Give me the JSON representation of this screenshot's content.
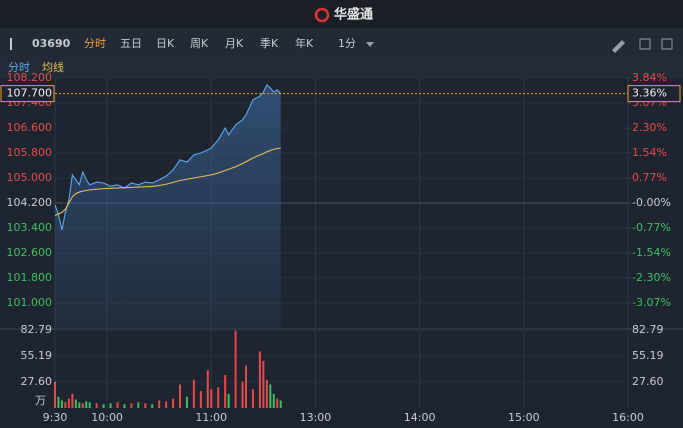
{
  "header": {
    "title": "华盛通"
  },
  "toolbar": {
    "symbol": "03690",
    "tabs": [
      "分时",
      "五日",
      "日K",
      "周K",
      "月K",
      "季K",
      "年K"
    ],
    "interval": "1分"
  },
  "chart_data": {
    "type": "line",
    "x": [
      0,
      2,
      4,
      6,
      8,
      10,
      12,
      14,
      16,
      18,
      20,
      24,
      28,
      32,
      36,
      40,
      44,
      48,
      52,
      56,
      60,
      64,
      68,
      72,
      76,
      80,
      84,
      88,
      90,
      94,
      98,
      100,
      104,
      108,
      110,
      114,
      118,
      120,
      122,
      124,
      126,
      128,
      130
    ],
    "xlim": [
      0,
      330
    ],
    "xticks": [
      {
        "value": 0,
        "label": "9:30"
      },
      {
        "value": 30,
        "label": "10:00"
      },
      {
        "value": 90,
        "label": "11:00"
      },
      {
        "value": 150,
        "label": "13:00"
      },
      {
        "value": 210,
        "label": "14:00"
      },
      {
        "value": 270,
        "label": "15:00"
      },
      {
        "value": 330,
        "label": "16:00"
      }
    ],
    "series": [
      {
        "name": "分时",
        "color": "#5aa9f0",
        "values": [
          104.14,
          103.82,
          103.34,
          103.91,
          104.3,
          105.1,
          104.94,
          104.78,
          105.19,
          104.94,
          104.78,
          104.87,
          104.84,
          104.74,
          104.78,
          104.68,
          104.84,
          104.78,
          104.87,
          104.84,
          104.94,
          105.06,
          105.26,
          105.58,
          105.51,
          105.74,
          105.8,
          105.9,
          105.96,
          106.22,
          106.6,
          106.38,
          106.7,
          106.86,
          107.02,
          107.5,
          107.62,
          107.75,
          107.98,
          107.88,
          107.75,
          107.82,
          107.7
        ]
      },
      {
        "name": "均线",
        "color": "#e8c04f",
        "values": [
          103.8,
          103.85,
          103.9,
          104.0,
          104.2,
          104.4,
          104.5,
          104.55,
          104.58,
          104.6,
          104.62,
          104.64,
          104.66,
          104.67,
          104.68,
          104.69,
          104.7,
          104.71,
          104.72,
          104.73,
          104.76,
          104.8,
          104.86,
          104.92,
          104.96,
          105.0,
          105.04,
          105.08,
          105.1,
          105.16,
          105.24,
          105.28,
          105.36,
          105.46,
          105.52,
          105.64,
          105.74,
          105.78,
          105.84,
          105.88,
          105.92,
          105.94,
          105.96
        ]
      }
    ],
    "ylim": [
      100.2,
      108.2
    ],
    "yticks": [
      {
        "value": 108.2,
        "label": "108.200"
      },
      {
        "value": 107.4,
        "label": "107.400"
      },
      {
        "value": 106.6,
        "label": "106.600"
      },
      {
        "value": 105.8,
        "label": "105.800"
      },
      {
        "value": 105.0,
        "label": "105.000"
      },
      {
        "value": 104.2,
        "label": "104.200"
      },
      {
        "value": 103.4,
        "label": "103.400"
      },
      {
        "value": 102.6,
        "label": "102.600"
      },
      {
        "value": 101.8,
        "label": "101.800"
      },
      {
        "value": 101.0,
        "label": "101.000"
      }
    ],
    "y2lim": [
      -3.84,
      3.84
    ],
    "y2ticks": [
      {
        "value": 3.84,
        "label": "3.84%"
      },
      {
        "value": 3.07,
        "label": "3.07%"
      },
      {
        "value": 2.3,
        "label": "2.30%"
      },
      {
        "value": 1.54,
        "label": "1.54%"
      },
      {
        "value": 0.77,
        "label": "0.77%"
      },
      {
        "value": 0,
        "label": "-0.00%"
      },
      {
        "value": -0.77,
        "label": "-0.77%"
      },
      {
        "value": -1.54,
        "label": "-1.54%"
      },
      {
        "value": -2.3,
        "label": "-2.30%"
      },
      {
        "value": -3.07,
        "label": "-3.07%"
      }
    ],
    "last_price": {
      "value": 107.7,
      "label": "107.700"
    },
    "last_change": {
      "value": 3.36,
      "label": "3.36%"
    },
    "volume": {
      "unit": "万",
      "ylim": [
        0,
        82.79
      ],
      "yticks": [
        82.79,
        55.19,
        {
          "value": 27.6,
          "label": "27.60"
        }
      ],
      "values": [
        28,
        12,
        8,
        6,
        10,
        15,
        9,
        6,
        5,
        7,
        6,
        5,
        4,
        5,
        6,
        4,
        5,
        6,
        5,
        4,
        8,
        7,
        10,
        25,
        12,
        30,
        18,
        40,
        20,
        22,
        35,
        15,
        82,
        28,
        45,
        20,
        60,
        50,
        30,
        25,
        15,
        10,
        8
      ]
    }
  }
}
